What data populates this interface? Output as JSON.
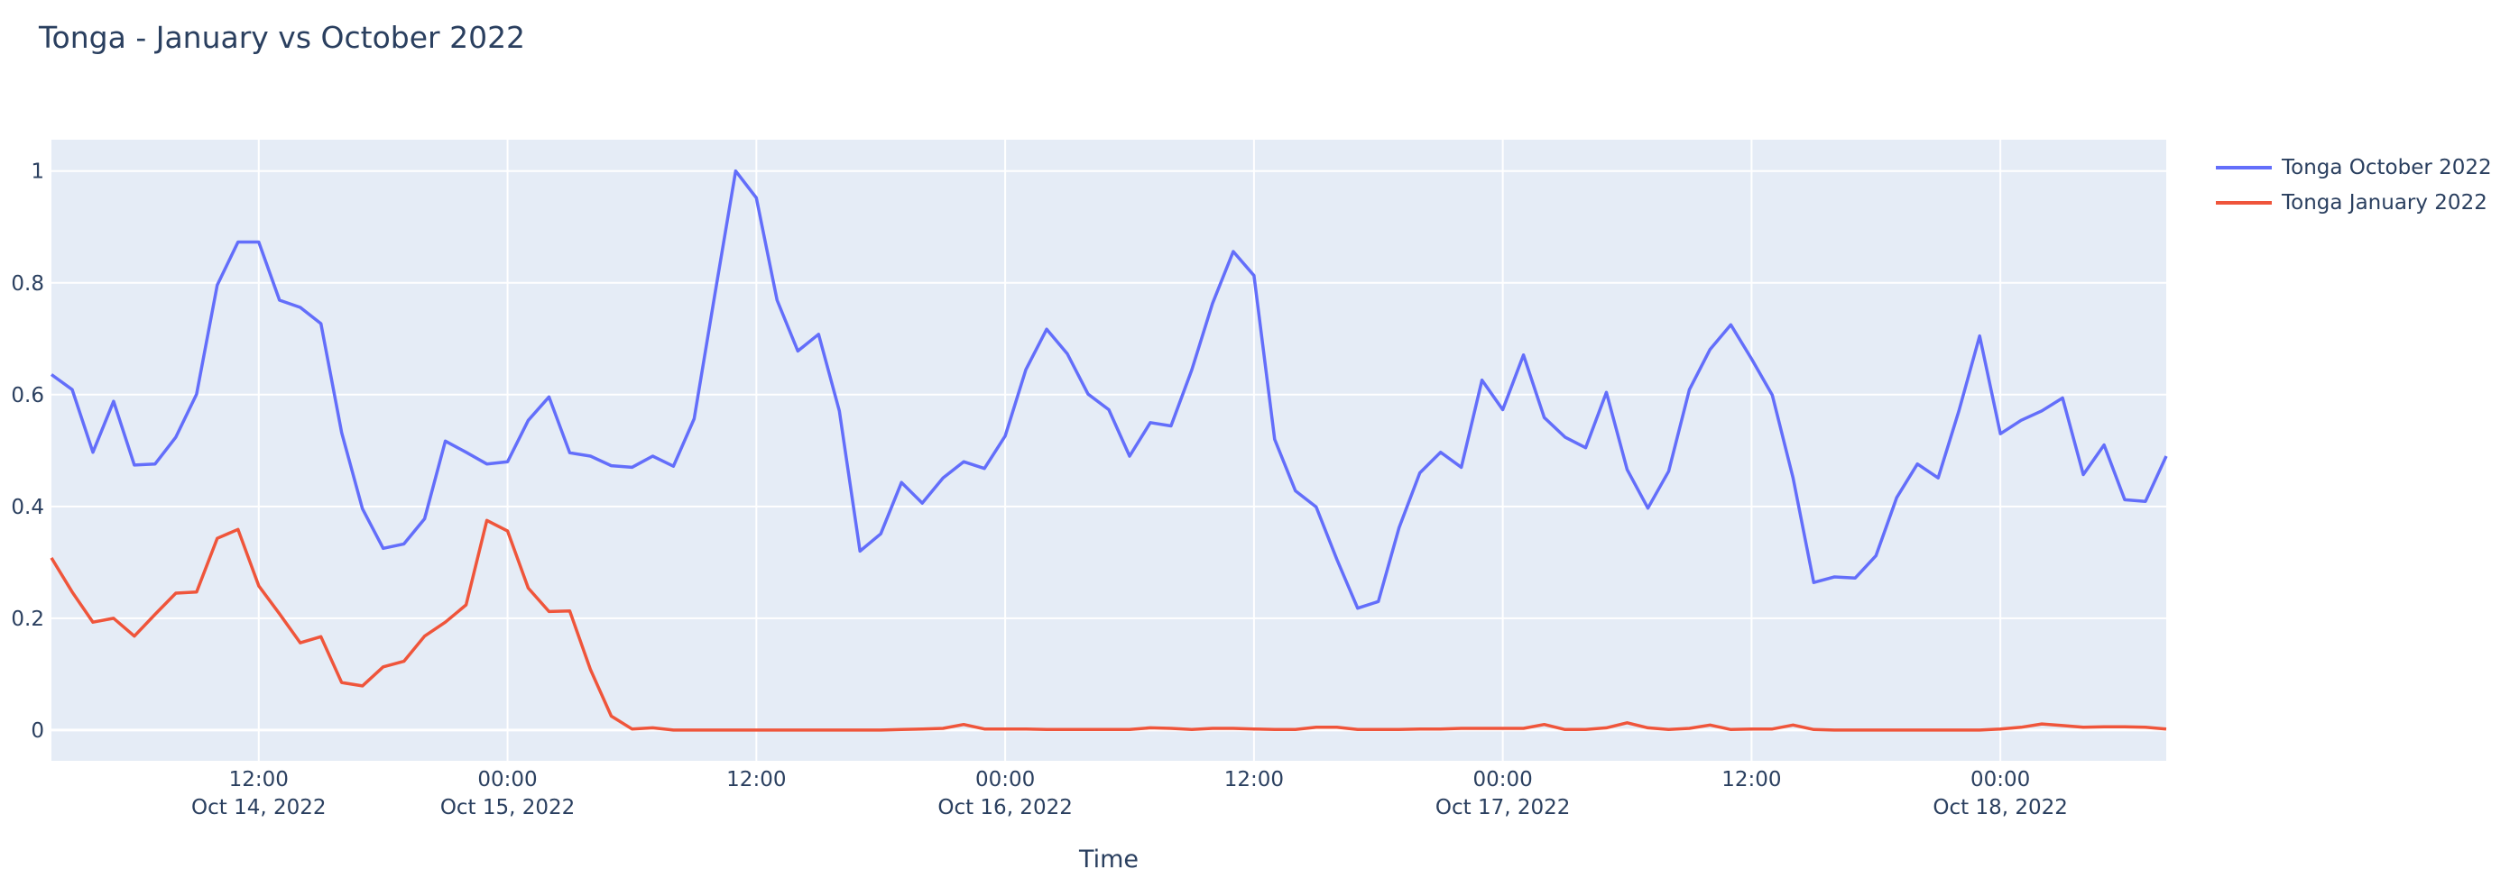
{
  "chart_data": {
    "type": "line",
    "title": "Tonga - January vs October 2022",
    "xlabel": "Time",
    "ylabel": "",
    "x_start": "2022-10-14T02:00",
    "x_step_hours": 1,
    "xlim": [
      "2022-10-14T02:00",
      "2022-10-18T08:00"
    ],
    "ylim": [
      -0.055,
      1.056
    ],
    "grid": true,
    "legend_position": "top-right outside",
    "y_ticks": [
      {
        "value": 0,
        "label": "0"
      },
      {
        "value": 0.2,
        "label": "0.2"
      },
      {
        "value": 0.4,
        "label": "0.4"
      },
      {
        "value": 0.6,
        "label": "0.6"
      },
      {
        "value": 0.8,
        "label": "0.8"
      },
      {
        "value": 1,
        "label": "1"
      }
    ],
    "x_ticks": [
      {
        "value": "2022-10-14T12:00",
        "label": "12:00",
        "sublabel": "Oct 14, 2022"
      },
      {
        "value": "2022-10-15T00:00",
        "label": "00:00",
        "sublabel": "Oct 15, 2022"
      },
      {
        "value": "2022-10-15T12:00",
        "label": "12:00",
        "sublabel": ""
      },
      {
        "value": "2022-10-16T00:00",
        "label": "00:00",
        "sublabel": "Oct 16, 2022"
      },
      {
        "value": "2022-10-16T12:00",
        "label": "12:00",
        "sublabel": ""
      },
      {
        "value": "2022-10-17T00:00",
        "label": "00:00",
        "sublabel": "Oct 17, 2022"
      },
      {
        "value": "2022-10-17T12:00",
        "label": "12:00",
        "sublabel": ""
      },
      {
        "value": "2022-10-18T00:00",
        "label": "00:00",
        "sublabel": "Oct 18, 2022"
      }
    ],
    "series": [
      {
        "name": "Tonga October 2022",
        "color": "#636efa",
        "values": [
          0.636,
          0.609,
          0.497,
          0.588,
          0.474,
          0.476,
          0.524,
          0.601,
          0.796,
          0.873,
          0.873,
          0.769,
          0.756,
          0.727,
          0.532,
          0.396,
          0.325,
          0.333,
          0.378,
          0.517,
          0.497,
          0.476,
          0.48,
          0.554,
          0.596,
          0.496,
          0.49,
          0.473,
          0.47,
          0.49,
          0.472,
          0.557,
          0.78,
          1.0,
          0.952,
          0.769,
          0.678,
          0.708,
          0.571,
          0.32,
          0.351,
          0.443,
          0.406,
          0.451,
          0.48,
          0.468,
          0.526,
          0.645,
          0.717,
          0.673,
          0.601,
          0.573,
          0.49,
          0.55,
          0.544,
          0.644,
          0.763,
          0.856,
          0.813,
          0.52,
          0.428,
          0.399,
          0.305,
          0.218,
          0.23,
          0.362,
          0.46,
          0.497,
          0.47,
          0.626,
          0.573,
          0.671,
          0.559,
          0.524,
          0.505,
          0.604,
          0.466,
          0.397,
          0.463,
          0.609,
          0.681,
          0.725,
          0.664,
          0.599,
          0.451,
          0.264,
          0.274,
          0.272,
          0.312,
          0.416,
          0.476,
          0.451,
          0.571,
          0.705,
          0.53,
          0.554,
          0.571,
          0.594,
          0.457,
          0.51,
          0.412,
          0.409,
          0.49
        ]
      },
      {
        "name": "Tonga January 2022",
        "color": "#ef553b",
        "values": [
          0.308,
          0.247,
          0.193,
          0.2,
          0.168,
          0.207,
          0.245,
          0.247,
          0.343,
          0.359,
          0.258,
          0.208,
          0.156,
          0.167,
          0.085,
          0.079,
          0.113,
          0.123,
          0.168,
          0.193,
          0.224,
          0.375,
          0.356,
          0.254,
          0.212,
          0.213,
          0.108,
          0.025,
          0.002,
          0.004,
          0.0,
          0,
          0,
          0,
          0,
          0,
          0,
          0,
          0,
          0,
          0,
          0.001,
          0.002,
          0.003,
          0.01,
          0.002,
          0.002,
          0.002,
          0.001,
          0.001,
          0.001,
          0.001,
          0.001,
          0.004,
          0.003,
          0.001,
          0.003,
          0.003,
          0.002,
          0.001,
          0.001,
          0.005,
          0.005,
          0.001,
          0.001,
          0.001,
          0.002,
          0.002,
          0.003,
          0.003,
          0.003,
          0.003,
          0.01,
          0.001,
          0.001,
          0.004,
          0.013,
          0.004,
          0.001,
          0.003,
          0.009,
          0.001,
          0.002,
          0.002,
          0.009,
          0.001,
          0,
          0,
          0,
          0,
          0,
          0,
          0,
          0,
          0.002,
          0.005,
          0.011,
          0.008,
          0.005,
          0.006,
          0.006,
          0.005,
          0.002
        ]
      }
    ]
  },
  "colors": {
    "plot_background": "#e5ecf6",
    "grid": "#ffffff",
    "text": "#2a3f5f"
  }
}
